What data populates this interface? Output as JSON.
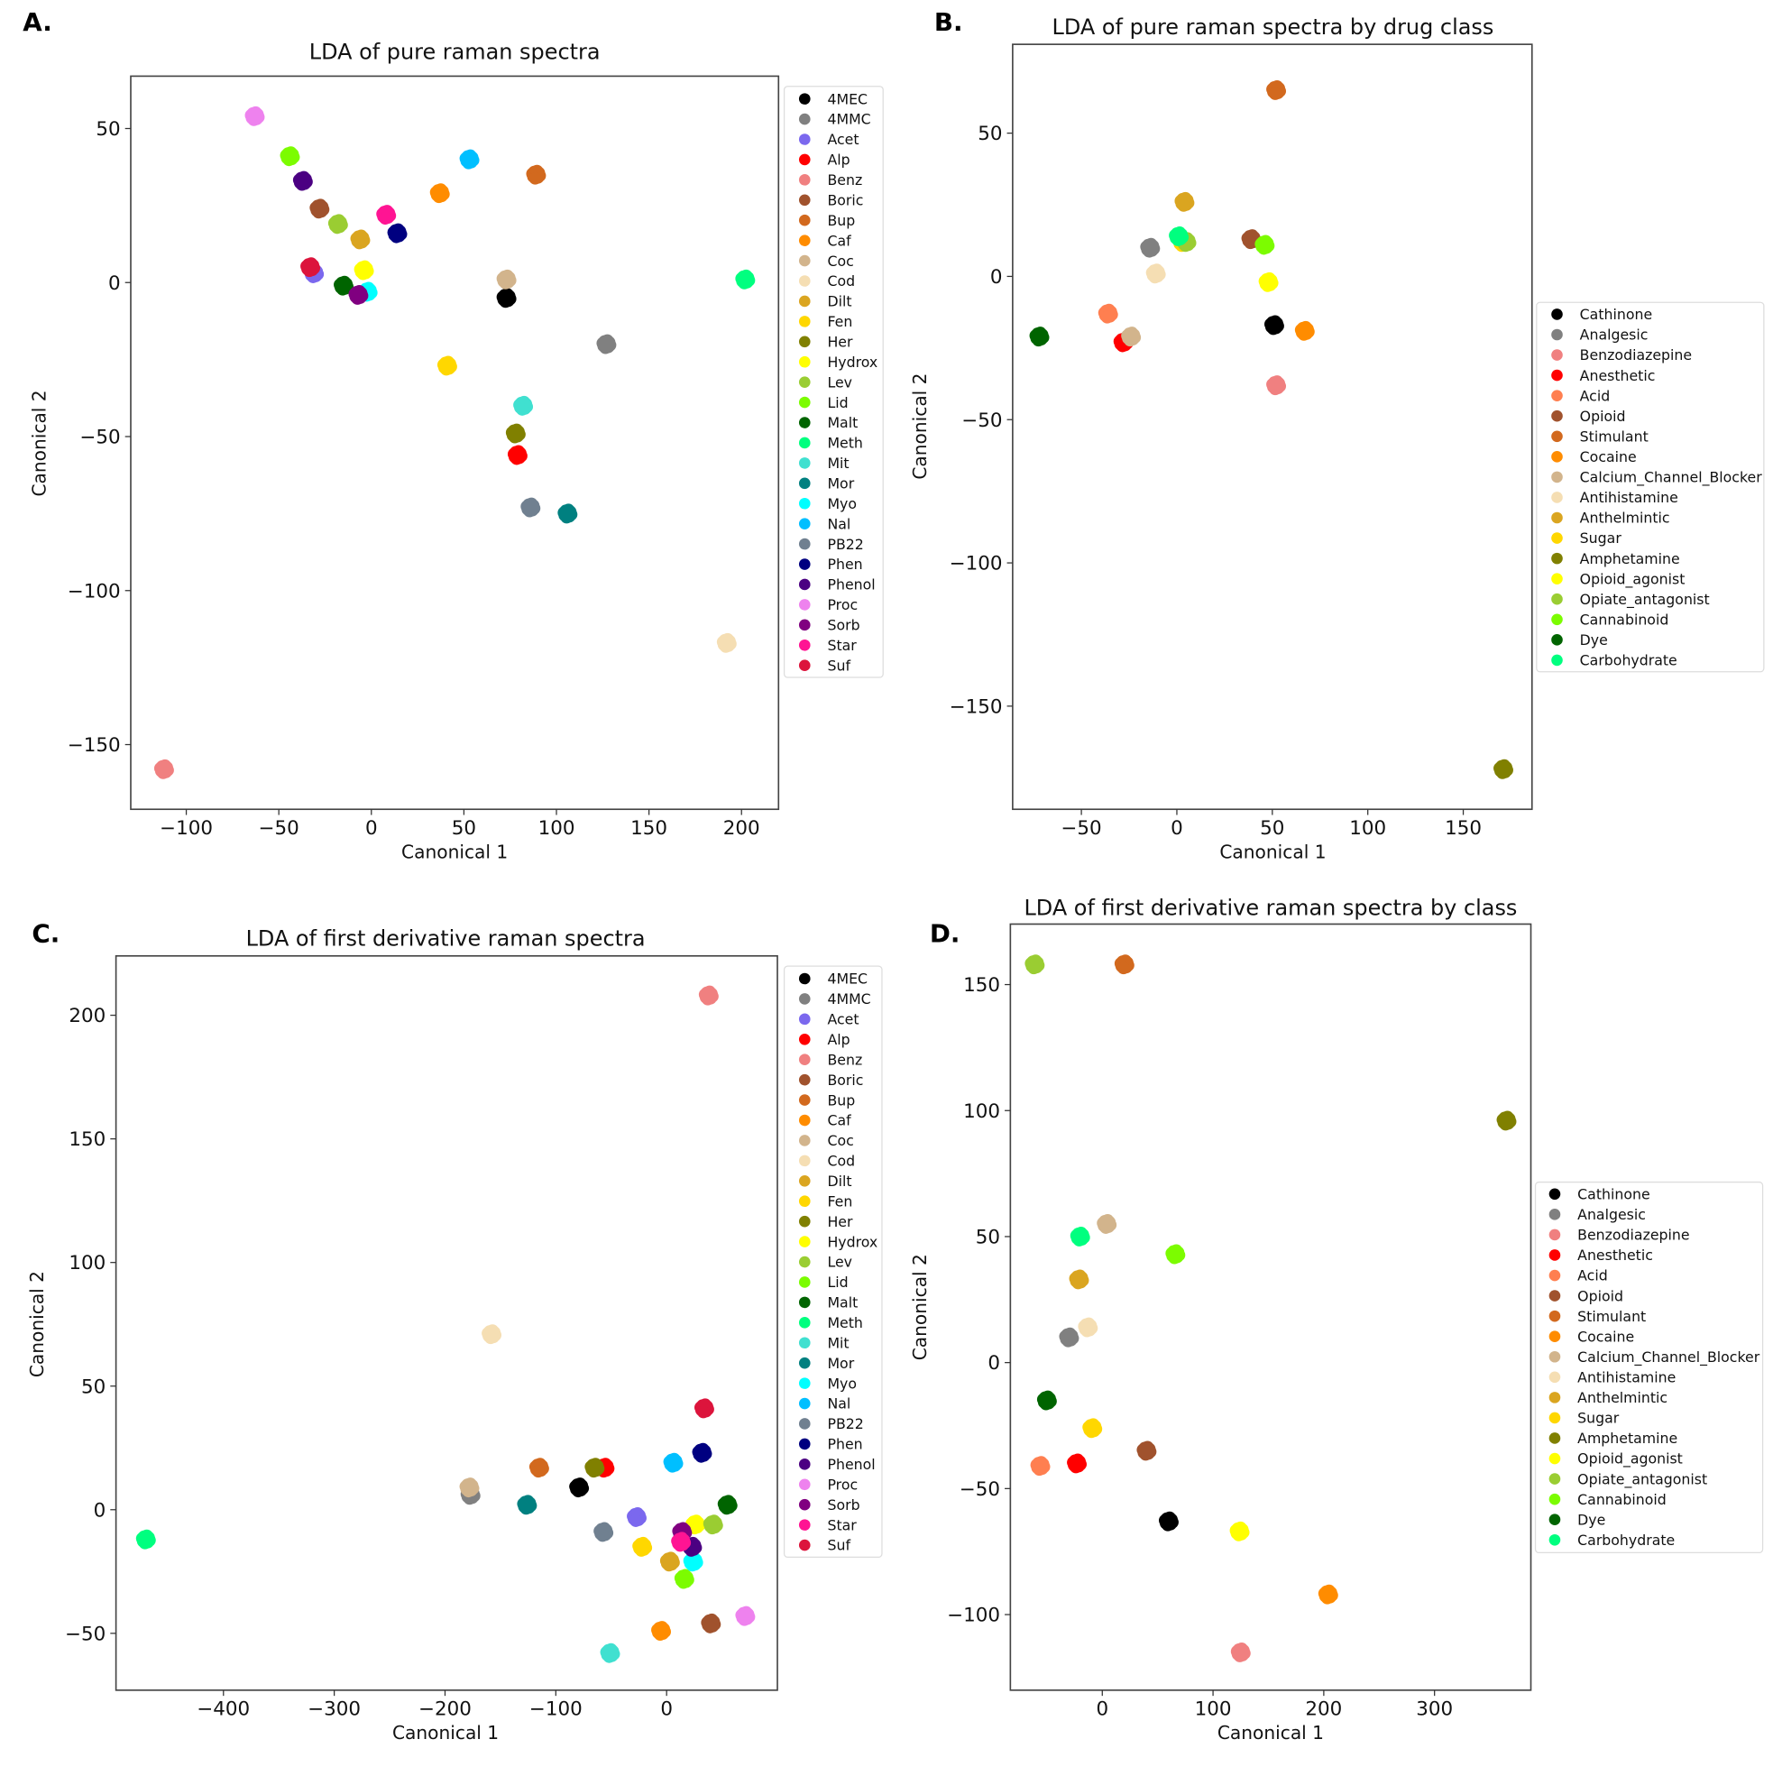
{
  "chart_data": [
    {
      "panel_label": "A.",
      "type": "scatter",
      "title": "LDA of pure raman spectra",
      "xlabel": "Canonical 1",
      "ylabel": "Canonical 2",
      "xlim": [
        -130,
        220
      ],
      "ylim": [
        -171,
        67
      ],
      "xticks": [
        -100,
        -50,
        0,
        50,
        100,
        150,
        200
      ],
      "xtick_labels": [
        "−100",
        "−50",
        "0",
        "50",
        "100",
        "150",
        "200"
      ],
      "yticks": [
        50,
        0,
        -50,
        -100,
        -150
      ],
      "ytick_labels": [
        "50",
        "0",
        "−50",
        "−100",
        "−150"
      ],
      "legend": "outside-right-top",
      "grid": false,
      "series": [
        {
          "name": "4MEC",
          "color": "#000000",
          "x": 73,
          "y": -5
        },
        {
          "name": "4MMC",
          "color": "#808080",
          "x": 127,
          "y": -20
        },
        {
          "name": "Acet",
          "color": "#7B68EE",
          "x": -31,
          "y": 3
        },
        {
          "name": "Alp",
          "color": "#FF0000",
          "x": 79,
          "y": -56
        },
        {
          "name": "Benz",
          "color": "#F08080",
          "x": -112,
          "y": -158
        },
        {
          "name": "Boric",
          "color": "#A0522D",
          "x": -28,
          "y": 24
        },
        {
          "name": "Bup",
          "color": "#D2691E",
          "x": 89,
          "y": 35
        },
        {
          "name": "Caf",
          "color": "#FF8C00",
          "x": 37,
          "y": 29
        },
        {
          "name": "Coc",
          "color": "#D2B48C",
          "x": 73,
          "y": 1
        },
        {
          "name": "Cod",
          "color": "#F5DEB3",
          "x": 192,
          "y": -117
        },
        {
          "name": "Dilt",
          "color": "#DAA520",
          "x": -6,
          "y": 14
        },
        {
          "name": "Fen",
          "color": "#FFD700",
          "x": 41,
          "y": -27
        },
        {
          "name": "Her",
          "color": "#808000",
          "x": 78,
          "y": -49
        },
        {
          "name": "Hydrox",
          "color": "#FFFF00",
          "x": -4,
          "y": 4
        },
        {
          "name": "Lev",
          "color": "#9ACD32",
          "x": -18,
          "y": 19
        },
        {
          "name": "Lid",
          "color": "#7CFC00",
          "x": -44,
          "y": 41
        },
        {
          "name": "Malt",
          "color": "#006400",
          "x": -15,
          "y": -1
        },
        {
          "name": "Meth",
          "color": "#00FF7F",
          "x": 202,
          "y": 1
        },
        {
          "name": "Mit",
          "color": "#40E0D0",
          "x": 82,
          "y": -40
        },
        {
          "name": "Mor",
          "color": "#008080",
          "x": 106,
          "y": -75
        },
        {
          "name": "Myo",
          "color": "#00FFFF",
          "x": -2,
          "y": -3
        },
        {
          "name": "Nal",
          "color": "#00BFFF",
          "x": 53,
          "y": 40
        },
        {
          "name": "PB22",
          "color": "#708090",
          "x": 86,
          "y": -73
        },
        {
          "name": "Phen",
          "color": "#000080",
          "x": 14,
          "y": 16
        },
        {
          "name": "Phenol",
          "color": "#4B0082",
          "x": -37,
          "y": 33
        },
        {
          "name": "Proc",
          "color": "#EE82EE",
          "x": -63,
          "y": 54
        },
        {
          "name": "Sorb",
          "color": "#800080",
          "x": -7,
          "y": -4
        },
        {
          "name": "Star",
          "color": "#FF1493",
          "x": 8,
          "y": 22
        },
        {
          "name": "Suf",
          "color": "#DC143C",
          "x": -33,
          "y": 5
        }
      ]
    },
    {
      "panel_label": "B.",
      "type": "scatter",
      "title": "LDA of pure raman spectra by drug class",
      "xlabel": "Canonical 1",
      "ylabel": "Canonical 2",
      "xlim": [
        -86,
        186
      ],
      "ylim": [
        -186,
        81
      ],
      "xticks": [
        -50,
        0,
        50,
        100,
        150
      ],
      "xtick_labels": [
        "−50",
        "0",
        "50",
        "100",
        "150"
      ],
      "yticks": [
        50,
        0,
        -50,
        -100,
        -150
      ],
      "ytick_labels": [
        "50",
        "0",
        "−50",
        "−100",
        "−150"
      ],
      "legend": "outside-right-center",
      "grid": false,
      "series": [
        {
          "name": "Cathinone",
          "color": "#000000",
          "x": 51,
          "y": -17
        },
        {
          "name": "Analgesic",
          "color": "#808080",
          "x": -14,
          "y": 10
        },
        {
          "name": "Benzodiazepine",
          "color": "#F08080",
          "x": 52,
          "y": -38
        },
        {
          "name": "Anesthetic",
          "color": "#FF0000",
          "x": -28,
          "y": -23
        },
        {
          "name": "Acid",
          "color": "#FF7F50",
          "x": -36,
          "y": -13
        },
        {
          "name": "Opioid",
          "color": "#A0522D",
          "x": 39,
          "y": 13
        },
        {
          "name": "Stimulant",
          "color": "#D2691E",
          "x": 52,
          "y": 65
        },
        {
          "name": "Cocaine",
          "color": "#FF8C00",
          "x": 67,
          "y": -19
        },
        {
          "name": "Calcium_Channel_Blocker",
          "color": "#D2B48C",
          "x": -24,
          "y": -21
        },
        {
          "name": "Antihistamine",
          "color": "#F5DEB3",
          "x": -11,
          "y": 1
        },
        {
          "name": "Anthelmintic",
          "color": "#DAA520",
          "x": 4,
          "y": 26
        },
        {
          "name": "Sugar",
          "color": "#FFD700",
          "x": 3,
          "y": 12
        },
        {
          "name": "Amphetamine",
          "color": "#808000",
          "x": 171,
          "y": -172
        },
        {
          "name": "Opioid_agonist",
          "color": "#FFFF00",
          "x": 48,
          "y": -2
        },
        {
          "name": "Opiate_antagonist",
          "color": "#9ACD32",
          "x": 5,
          "y": 12
        },
        {
          "name": "Cannabinoid",
          "color": "#7CFC00",
          "x": 46,
          "y": 11
        },
        {
          "name": "Dye",
          "color": "#006400",
          "x": -72,
          "y": -21
        },
        {
          "name": "Carbohydrate",
          "color": "#00FF7F",
          "x": 1,
          "y": 14
        }
      ]
    },
    {
      "panel_label": "C.",
      "type": "scatter",
      "title": "LDA of first derivative raman spectra",
      "xlabel": "Canonical 1",
      "ylabel": "Canonical 2",
      "xlim": [
        -497,
        100
      ],
      "ylim": [
        -73,
        224
      ],
      "xticks": [
        -400,
        -300,
        -200,
        -100,
        0
      ],
      "xtick_labels": [
        "−400",
        "−300",
        "−200",
        "−100",
        "0"
      ],
      "yticks": [
        200,
        150,
        100,
        50,
        0,
        -50
      ],
      "ytick_labels": [
        "200",
        "150",
        "100",
        "50",
        "0",
        "−50"
      ],
      "legend": "outside-right-top",
      "grid": false,
      "series": [
        {
          "name": "4MEC",
          "color": "#000000",
          "x": -79,
          "y": 9
        },
        {
          "name": "4MMC",
          "color": "#808080",
          "x": -177,
          "y": 6
        },
        {
          "name": "Acet",
          "color": "#7B68EE",
          "x": -27,
          "y": -3
        },
        {
          "name": "Alp",
          "color": "#FF0000",
          "x": -56,
          "y": 17
        },
        {
          "name": "Benz",
          "color": "#F08080",
          "x": 38,
          "y": 208
        },
        {
          "name": "Boric",
          "color": "#A0522D",
          "x": 40,
          "y": -46
        },
        {
          "name": "Bup",
          "color": "#D2691E",
          "x": -115,
          "y": 17
        },
        {
          "name": "Caf",
          "color": "#FF8C00",
          "x": -5,
          "y": -49
        },
        {
          "name": "Coc",
          "color": "#D2B48C",
          "x": -178,
          "y": 9
        },
        {
          "name": "Cod",
          "color": "#F5DEB3",
          "x": -158,
          "y": 71
        },
        {
          "name": "Dilt",
          "color": "#DAA520",
          "x": 3,
          "y": -21
        },
        {
          "name": "Fen",
          "color": "#FFD700",
          "x": -22,
          "y": -15
        },
        {
          "name": "Her",
          "color": "#808000",
          "x": -65,
          "y": 17
        },
        {
          "name": "Hydrox",
          "color": "#FFFF00",
          "x": 26,
          "y": -6
        },
        {
          "name": "Lev",
          "color": "#9ACD32",
          "x": 42,
          "y": -6
        },
        {
          "name": "Lid",
          "color": "#7CFC00",
          "x": 16,
          "y": -28
        },
        {
          "name": "Malt",
          "color": "#006400",
          "x": 55,
          "y": 2
        },
        {
          "name": "Meth",
          "color": "#00FF7F",
          "x": -470,
          "y": -12
        },
        {
          "name": "Mit",
          "color": "#40E0D0",
          "x": -51,
          "y": -58
        },
        {
          "name": "Mor",
          "color": "#008080",
          "x": -126,
          "y": 2
        },
        {
          "name": "Myo",
          "color": "#00FFFF",
          "x": 24,
          "y": -21
        },
        {
          "name": "Nal",
          "color": "#00BFFF",
          "x": 6,
          "y": 19
        },
        {
          "name": "PB22",
          "color": "#708090",
          "x": -57,
          "y": -9
        },
        {
          "name": "Phen",
          "color": "#000080",
          "x": 32,
          "y": 23
        },
        {
          "name": "Phenol",
          "color": "#4B0082",
          "x": 23,
          "y": -15
        },
        {
          "name": "Proc",
          "color": "#EE82EE",
          "x": 71,
          "y": -43
        },
        {
          "name": "Sorb",
          "color": "#800080",
          "x": 14,
          "y": -9
        },
        {
          "name": "Star",
          "color": "#FF1493",
          "x": 13,
          "y": -13
        },
        {
          "name": "Suf",
          "color": "#DC143C",
          "x": 34,
          "y": 41
        }
      ]
    },
    {
      "panel_label": "D.",
      "type": "scatter",
      "title": "LDA of first derivative raman spectra by class",
      "xlabel": "Canonical 1",
      "ylabel": "Canonical 2",
      "xlim": [
        -83,
        387
      ],
      "ylim": [
        -130,
        174
      ],
      "xticks": [
        0,
        100,
        200,
        300
      ],
      "xtick_labels": [
        "0",
        "100",
        "200",
        "300"
      ],
      "yticks": [
        150,
        100,
        50,
        0,
        -50,
        -100
      ],
      "ytick_labels": [
        "150",
        "100",
        "50",
        "0",
        "−50",
        "−100"
      ],
      "legend": "outside-right-center",
      "grid": false,
      "series": [
        {
          "name": "Cathinone",
          "color": "#000000",
          "x": 60,
          "y": -63
        },
        {
          "name": "Analgesic",
          "color": "#808080",
          "x": -30,
          "y": 10
        },
        {
          "name": "Benzodiazepine",
          "color": "#F08080",
          "x": 125,
          "y": -115
        },
        {
          "name": "Anesthetic",
          "color": "#FF0000",
          "x": -23,
          "y": -40
        },
        {
          "name": "Acid",
          "color": "#FF7F50",
          "x": -56,
          "y": -41
        },
        {
          "name": "Opioid",
          "color": "#A0522D",
          "x": 40,
          "y": -35
        },
        {
          "name": "Stimulant",
          "color": "#D2691E",
          "x": 20,
          "y": 158
        },
        {
          "name": "Cocaine",
          "color": "#FF8C00",
          "x": 204,
          "y": -92
        },
        {
          "name": "Calcium_Channel_Blocker",
          "color": "#D2B48C",
          "x": 4,
          "y": 55
        },
        {
          "name": "Antihistamine",
          "color": "#F5DEB3",
          "x": -13,
          "y": 14
        },
        {
          "name": "Anthelmintic",
          "color": "#DAA520",
          "x": -21,
          "y": 33
        },
        {
          "name": "Sugar",
          "color": "#FFD700",
          "x": -9,
          "y": -26
        },
        {
          "name": "Amphetamine",
          "color": "#808000",
          "x": 365,
          "y": 96
        },
        {
          "name": "Opioid_agonist",
          "color": "#FFFF00",
          "x": 124,
          "y": -67
        },
        {
          "name": "Opiate_antagonist",
          "color": "#9ACD32",
          "x": -61,
          "y": 158
        },
        {
          "name": "Cannabinoid",
          "color": "#7CFC00",
          "x": 66,
          "y": 43
        },
        {
          "name": "Dye",
          "color": "#006400",
          "x": -50,
          "y": -15
        },
        {
          "name": "Carbohydrate",
          "color": "#00FF7F",
          "x": -20,
          "y": 50
        }
      ]
    }
  ]
}
